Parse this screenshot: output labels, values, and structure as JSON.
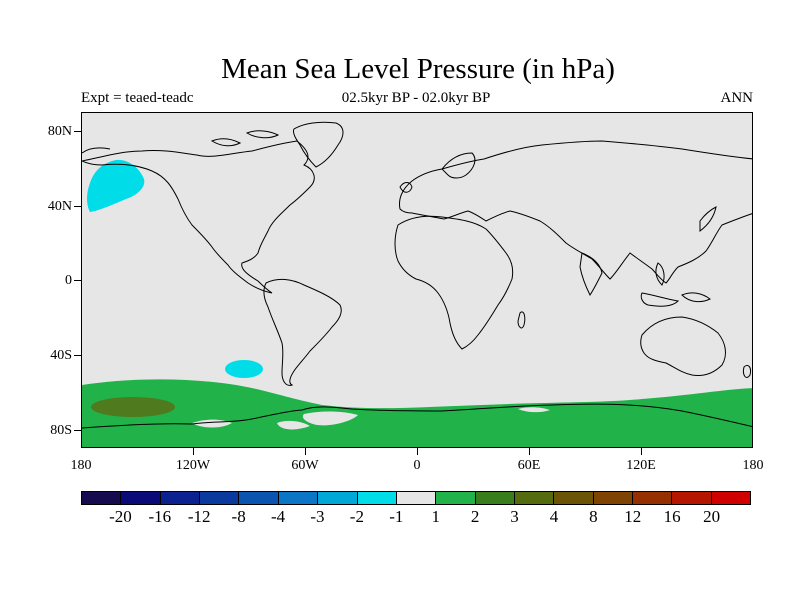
{
  "title": "Mean Sea Level Pressure (in hPa)",
  "left_subtitle": "Expt = teaed-teadc",
  "center_subtitle": "02.5kyr BP - 02.0kyr BP",
  "right_subtitle": "ANN",
  "map": {
    "projection": "cylindrical-equidistant",
    "lon_range": [
      -180,
      180
    ],
    "lat_range": [
      -90,
      90
    ],
    "background_color": "#e6e6e6",
    "y_ticks": [
      "80N",
      "40N",
      "0",
      "40S",
      "80S"
    ],
    "x_ticks": [
      "180",
      "120W",
      "60W",
      "0",
      "60E",
      "120E",
      "180"
    ],
    "regions": [
      {
        "name": "negative anomaly North Pacific",
        "level": "-2 to -1",
        "color": "#00dde8"
      },
      {
        "name": "negative anomaly South Pacific",
        "level": "-2 to -1",
        "color": "#00dde8"
      },
      {
        "name": "positive anomaly Southern Ocean band",
        "level": "1 to 2",
        "color": "#22b24a"
      },
      {
        "name": "positive anomaly core",
        "level": "3 to 4",
        "color": "#4f7a1e"
      }
    ]
  },
  "colorbar": {
    "colors": [
      "#160b4e",
      "#0a0a78",
      "#0c2290",
      "#0a3a9e",
      "#0b55b0",
      "#0b76c6",
      "#00a8d8",
      "#00dde8",
      "#e6e6e6",
      "#22b24a",
      "#3a7d1c",
      "#556b10",
      "#6b5408",
      "#7f4404",
      "#963000",
      "#b41600",
      "#d10000"
    ],
    "labels": [
      "-20",
      "-16",
      "-12",
      "-8",
      "-4",
      "-3",
      "-2",
      "-1",
      "1",
      "2",
      "3",
      "4",
      "8",
      "12",
      "16",
      "20"
    ]
  }
}
